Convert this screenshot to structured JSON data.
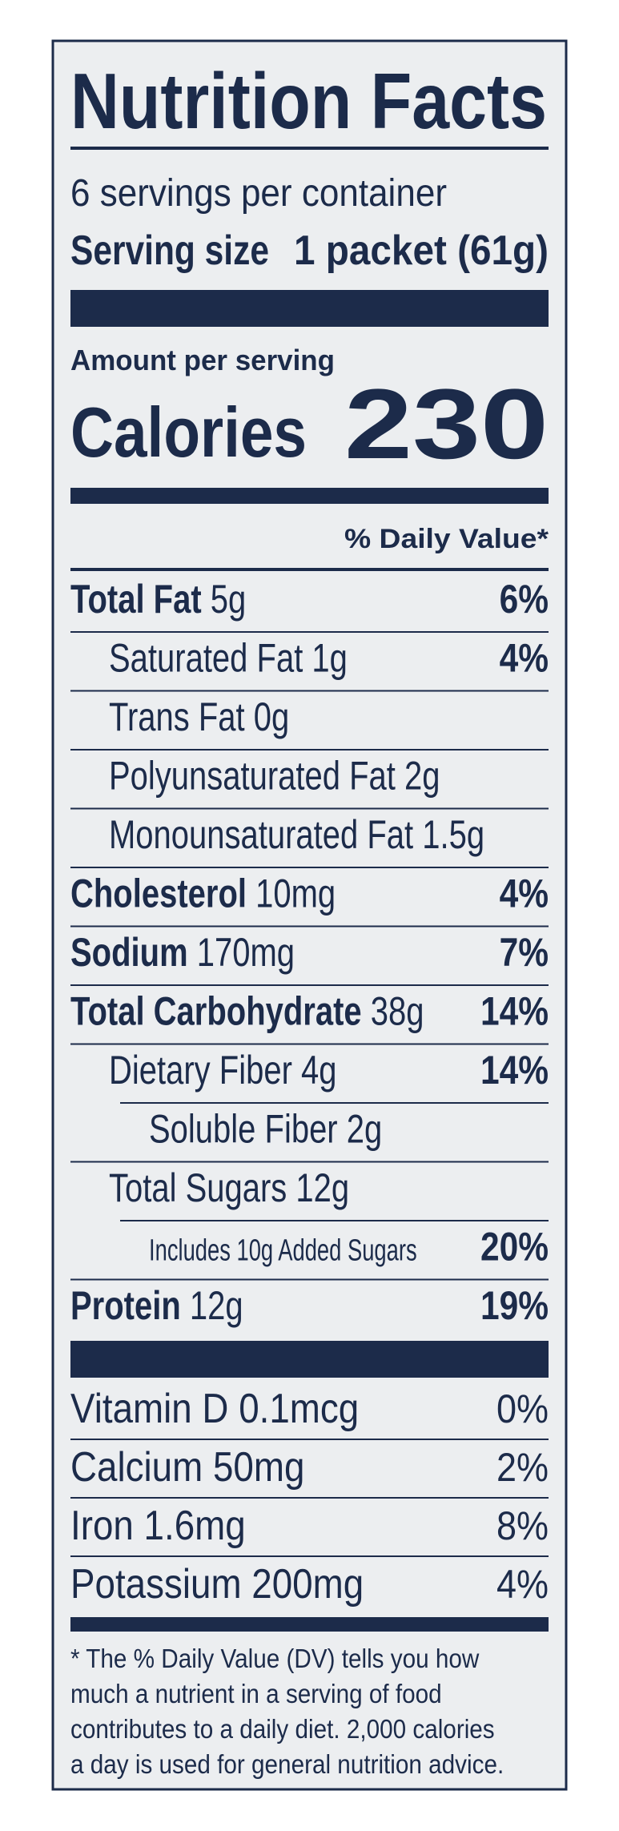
{
  "title": "Nutrition Facts",
  "servings": "6 servings per container",
  "serving_size": {
    "label": "Serving size",
    "value": "1 packet (61g)"
  },
  "amount_per_serving": "Amount per serving",
  "calories": {
    "label": "Calories",
    "value": 230
  },
  "dv_header": "% Daily Value*",
  "nutrients": [
    {
      "name": "Total Fat",
      "amount": "5g",
      "dv": "6%"
    },
    {
      "name": "Saturated Fat",
      "amount": "1g",
      "dv": "4%"
    },
    {
      "name": "Trans Fat",
      "amount": "0g"
    },
    {
      "name": "Polyunsaturated Fat",
      "amount": "2g"
    },
    {
      "name": "Monounsaturated Fat",
      "amount": "1.5g"
    },
    {
      "name": "Cholesterol",
      "amount": "10mg",
      "dv": "4%"
    },
    {
      "name": "Sodium",
      "amount": "170mg",
      "dv": "7%"
    },
    {
      "name": "Total Carbohydrate",
      "amount": "38g",
      "dv": "14%"
    },
    {
      "name": "Dietary Fiber",
      "amount": "4g",
      "dv": "14%"
    },
    {
      "name": "Soluble Fiber",
      "amount": "2g"
    },
    {
      "name": "Total Sugars",
      "amount": "12g"
    },
    {
      "name": "Includes 10g Added Sugars",
      "dv": "20%"
    },
    {
      "name": "Protein",
      "amount": "12g",
      "dv": "19%"
    }
  ],
  "vitamins": [
    {
      "name": "Vitamin D",
      "amount": "0.1mcg",
      "dv": "0%"
    },
    {
      "name": "Calcium",
      "amount": "50mg",
      "dv": "2%"
    },
    {
      "name": "Iron",
      "amount": "1.6mg",
      "dv": "8%"
    },
    {
      "name": "Potassium",
      "amount": "200mg",
      "dv": "4%"
    }
  ],
  "footnote": [
    "* The % Daily Value (DV) tells you how",
    "much a nutrient in a serving of food",
    "contributes to a daily diet. 2,000 calories",
    "a day is used for general nutrition advice."
  ]
}
